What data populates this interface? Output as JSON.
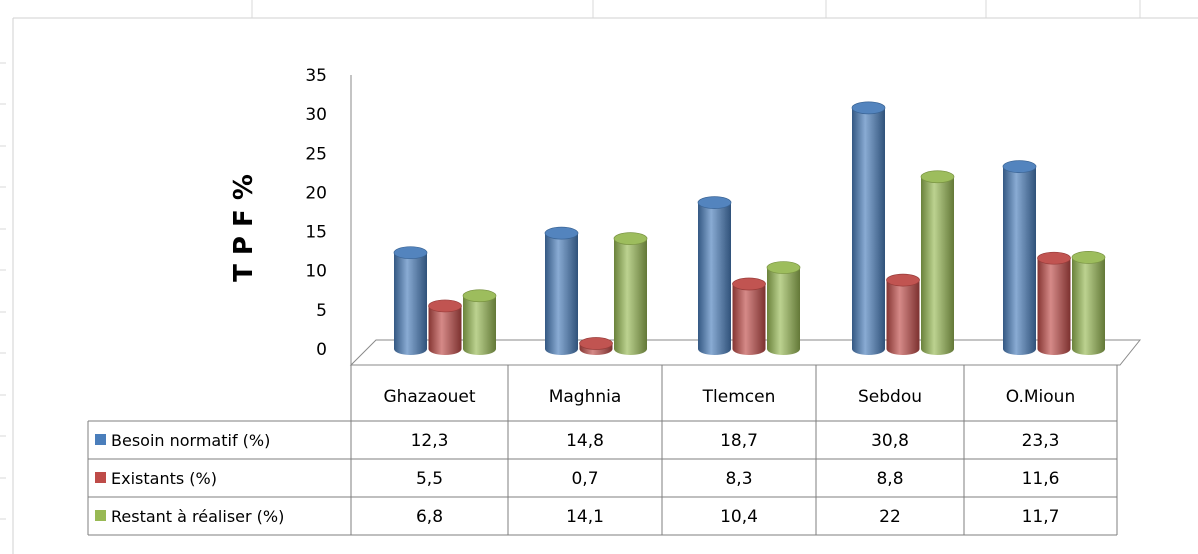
{
  "chart_data": {
    "type": "bar",
    "ylabel": "T P F %",
    "ylim": [
      0,
      35
    ],
    "yticks": [
      "0",
      "5",
      "10",
      "15",
      "20",
      "25",
      "30",
      "35"
    ],
    "categories": [
      "Ghazaouet",
      "Maghnia",
      "Tlemcen",
      "Sebdou",
      "O.Mioun"
    ],
    "series": [
      {
        "name": "Besoin normatif    (%)",
        "color": "#4a7ebb",
        "values": [
          12.3,
          14.8,
          18.7,
          30.8,
          23.3
        ],
        "labels": [
          "12,3",
          "14,8",
          "18,7",
          "30,8",
          "23,3"
        ]
      },
      {
        "name": " Existants  (%)",
        "color": "#be4b48",
        "values": [
          5.5,
          0.7,
          8.3,
          8.8,
          11.6
        ],
        "labels": [
          "5,5",
          "0,7",
          "8,3",
          "8,8",
          "11,6"
        ]
      },
      {
        "name": "Restant à réaliser (%)",
        "color": "#98b954",
        "values": [
          6.8,
          14.1,
          10.4,
          22,
          11.7
        ],
        "labels": [
          "6,8",
          "14,1",
          "10,4",
          "22",
          "11,7"
        ]
      }
    ],
    "legend_position": "data-table"
  }
}
